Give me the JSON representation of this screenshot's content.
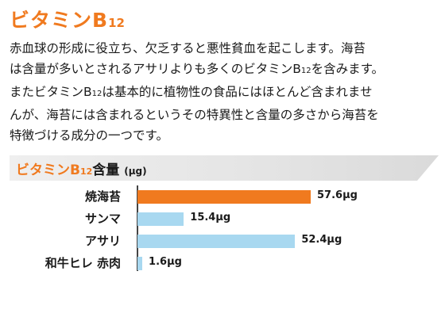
{
  "heading": {
    "title": "ビタミン",
    "title_b": "B",
    "title_sub": "12"
  },
  "paragraph": {
    "line1": "赤血球の形成に役立ち、欠乏すると悪性貧血を起こします。海苔",
    "line2_pre": "は含量が多いとされるアサリよりも多くのビタミンB",
    "line2_sub": "12",
    "line2_post": "を含みます。",
    "line3_pre": "またビタミンB",
    "line3_sub": "12",
    "line3_post": "は基本的に植物性の食品にはほとんど含まれませ",
    "line4": "んが、海苔には含まれるというその特異性と含量の多さから海苔を",
    "line5": "特徴づける成分の一つです。"
  },
  "chart_header": {
    "name": "ビタミンB",
    "sub": "12",
    "suffix": "含量",
    "unit": "(μg)"
  },
  "chart_data": {
    "type": "bar",
    "orientation": "horizontal",
    "categories": [
      "焼海苔",
      "サンマ",
      "アサリ",
      "和牛ヒレ 赤肉"
    ],
    "values": [
      57.6,
      15.4,
      52.4,
      1.6
    ],
    "value_labels": [
      "57.6μg",
      "15.4μg",
      "52.4μg",
      "1.6μg"
    ],
    "title": "ビタミンB12含量 (μg)",
    "xlim": [
      0,
      60
    ],
    "colors": [
      "#f07a1f",
      "#a8d8f0",
      "#a8d8f0",
      "#a8d8f0"
    ],
    "grid": false
  }
}
